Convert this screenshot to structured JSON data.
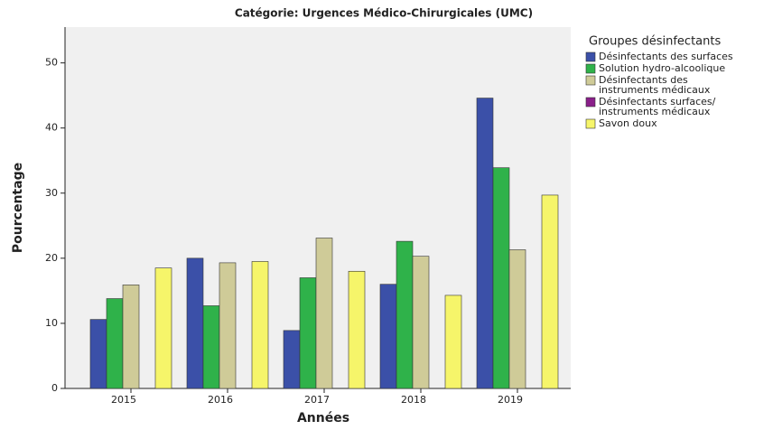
{
  "chart_data": {
    "type": "bar",
    "title": "Catégorie: Urgences Médico-Chirurgicales (UMC)",
    "x_label": "Années",
    "y_label": "Pourcentage",
    "categories": [
      "2015",
      "2016",
      "2017",
      "2018",
      "2019"
    ],
    "legend_title": "Groupes désinfectants",
    "series": [
      {
        "name": "Désinfectants des surfaces",
        "color": "#3b50a8",
        "values": [
          10.6,
          20.0,
          8.9,
          16.0,
          44.6
        ]
      },
      {
        "name": "Solution hydro-alcoolique",
        "color": "#2fb24a",
        "values": [
          13.8,
          12.7,
          17.0,
          22.6,
          33.9
        ]
      },
      {
        "name": "Désinfectants des\ninstruments médicaux",
        "color": "#cfcb98",
        "values": [
          15.9,
          19.3,
          23.1,
          20.3,
          21.3
        ]
      },
      {
        "name": "Désinfectants surfaces/\ninstruments médicaux",
        "color": "#8a1f8a",
        "values": [
          0,
          0,
          0,
          0,
          0
        ]
      },
      {
        "name": "Savon doux",
        "color": "#f6f56a",
        "values": [
          18.5,
          19.5,
          18.0,
          14.3,
          29.7
        ]
      }
    ],
    "ylim": [
      0,
      55.5
    ],
    "yticks": [
      0,
      10,
      20,
      30,
      40,
      50
    ],
    "legend": "right"
  }
}
